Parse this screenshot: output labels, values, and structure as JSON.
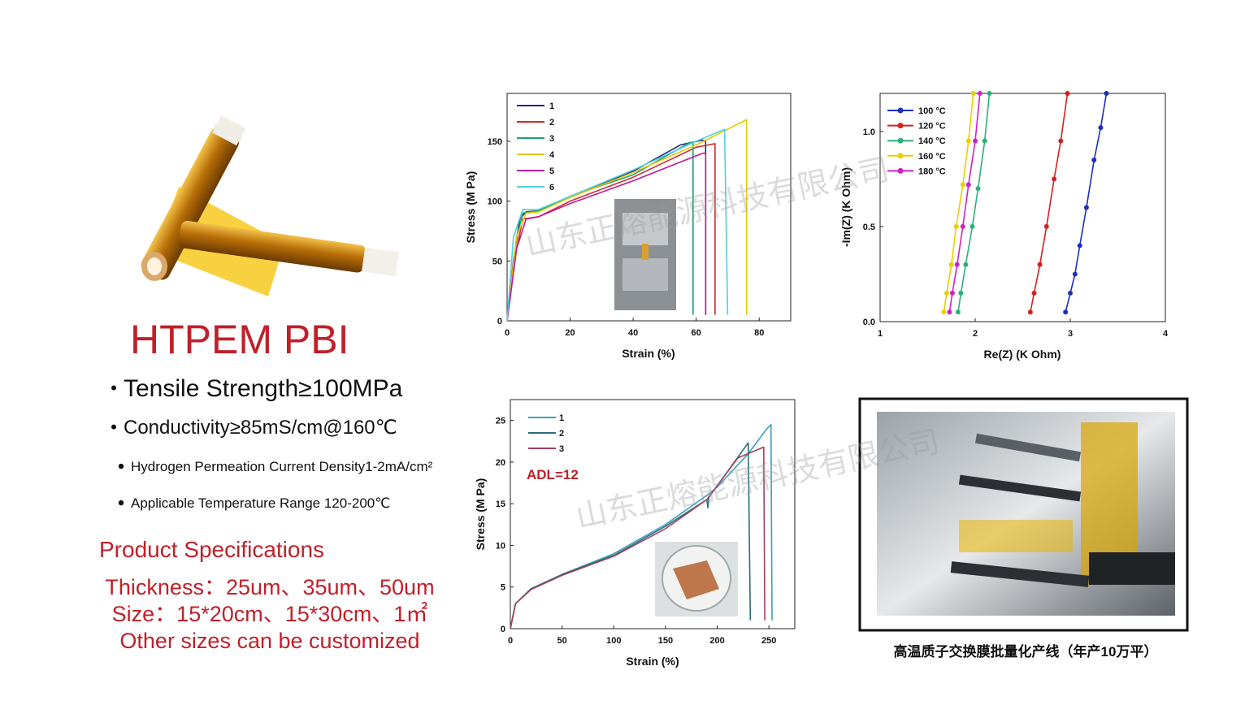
{
  "product": {
    "title": "HTPEM PBI",
    "features": [
      "Tensile Strength≥100MPa",
      "Conductivity≥85mS/cm@160℃",
      "Hydrogen Permeation Current Density1-2mA/cm²",
      "Applicable Temperature Range 120-200℃"
    ],
    "spec_heading": "Product Specifications",
    "specs": [
      "Thickness：25um、35um、50um",
      "Size：15*20cm、15*30cm、1㎡",
      "Other sizes can be customized"
    ]
  },
  "watermark": "山东正熔能源科技有限公司",
  "caption": "高温质子交换膜批量化产线（年产10万平）",
  "chart_data": [
    {
      "type": "line",
      "x_label": "Strain (%)",
      "y_label": "Stress (M Pa)",
      "xlim": [
        0,
        90
      ],
      "xticks": [
        0,
        20,
        40,
        60,
        80
      ],
      "ylim": [
        0,
        190
      ],
      "yticks": [
        0,
        50,
        100,
        150
      ],
      "legend": "upper left",
      "series": [
        {
          "name": "1",
          "color": "#1f2a7a",
          "x": [
            0,
            2,
            4,
            6,
            10,
            20,
            40,
            55,
            62,
            63,
            63
          ],
          "values": [
            0,
            50,
            85,
            91,
            92,
            104,
            125,
            147,
            151,
            150,
            5
          ]
        },
        {
          "name": "2",
          "color": "#d02a2a",
          "x": [
            0,
            3,
            5,
            10,
            20,
            40,
            60,
            66,
            66
          ],
          "values": [
            0,
            60,
            85,
            87,
            100,
            120,
            145,
            148,
            5
          ]
        },
        {
          "name": "3",
          "color": "#1a9e77",
          "x": [
            0,
            3,
            5,
            10,
            20,
            40,
            58,
            59,
            59
          ],
          "values": [
            0,
            70,
            90,
            92,
            104,
            122,
            149,
            149,
            5
          ]
        },
        {
          "name": "4",
          "color": "#e8c800",
          "x": [
            0,
            3,
            6,
            10,
            20,
            40,
            60,
            76,
            76
          ],
          "values": [
            0,
            70,
            90,
            91,
            103,
            124,
            147,
            168,
            5
          ]
        },
        {
          "name": "5",
          "color": "#c0189a",
          "x": [
            0,
            3,
            6,
            10,
            20,
            40,
            62,
            63,
            63
          ],
          "values": [
            0,
            60,
            85,
            87,
            98,
            117,
            140,
            140,
            5
          ]
        },
        {
          "name": "6",
          "color": "#4fd0e0",
          "x": [
            0,
            2,
            5,
            10,
            20,
            40,
            60,
            69,
            70
          ],
          "values": [
            0,
            70,
            93,
            93,
            104,
            126,
            150,
            160,
            5
          ]
        }
      ]
    },
    {
      "type": "line",
      "markers": true,
      "x_label": "Re(Z) (K Ohm)",
      "y_label": "-Im(Z) (K Ohm)",
      "xlim": [
        1,
        4
      ],
      "xticks": [
        1,
        2,
        3,
        4
      ],
      "ylim": [
        0,
        1.2
      ],
      "yticks": [
        {
          "value": 0,
          "label": "0.0"
        },
        {
          "value": 0.5,
          "label": "0.5"
        },
        {
          "value": 1,
          "label": "1.0"
        }
      ],
      "legend": "upper left",
      "series": [
        {
          "name": "100 °C",
          "color": "#1b2fc0",
          "x": [
            2.95,
            3.0,
            3.05,
            3.1,
            3.17,
            3.25,
            3.32,
            3.38
          ],
          "values": [
            0.05,
            0.15,
            0.25,
            0.4,
            0.6,
            0.85,
            1.02,
            1.2
          ]
        },
        {
          "name": "120 °C",
          "color": "#d62020",
          "x": [
            2.58,
            2.62,
            2.68,
            2.75,
            2.83,
            2.9,
            2.97
          ],
          "values": [
            0.05,
            0.15,
            0.3,
            0.5,
            0.75,
            0.95,
            1.2
          ]
        },
        {
          "name": "140 °C",
          "color": "#2bb07a",
          "x": [
            1.82,
            1.85,
            1.9,
            1.97,
            2.03,
            2.1,
            2.15
          ],
          "values": [
            0.05,
            0.15,
            0.3,
            0.5,
            0.7,
            0.95,
            1.2
          ]
        },
        {
          "name": "160 °C",
          "color": "#e8d000",
          "x": [
            1.67,
            1.7,
            1.75,
            1.8,
            1.87,
            1.93,
            1.98
          ],
          "values": [
            0.05,
            0.15,
            0.3,
            0.5,
            0.72,
            0.95,
            1.2
          ]
        },
        {
          "name": "180 °C",
          "color": "#d020c8",
          "x": [
            1.73,
            1.76,
            1.81,
            1.87,
            1.93,
            2.0,
            2.05
          ],
          "values": [
            0.05,
            0.15,
            0.3,
            0.5,
            0.72,
            0.95,
            1.2
          ]
        }
      ]
    },
    {
      "type": "line",
      "x_label": "Strain (%)",
      "y_label": "Stress (M Pa)",
      "annotation": "ADL=12",
      "xlim": [
        0,
        275
      ],
      "xticks": [
        0,
        50,
        100,
        150,
        200,
        250
      ],
      "ylim": [
        0,
        27.5
      ],
      "yticks": [
        0,
        5,
        10,
        15,
        20,
        25
      ],
      "legend": "upper left",
      "series": [
        {
          "name": "1",
          "color": "#3aa0c0",
          "x": [
            0,
            5,
            20,
            50,
            100,
            150,
            190,
            200,
            230,
            248,
            252,
            253
          ],
          "values": [
            0,
            3,
            4.8,
            6.5,
            9,
            12.5,
            16,
            17,
            21,
            24,
            24.5,
            1
          ]
        },
        {
          "name": "2",
          "color": "#2a6e7a",
          "x": [
            0,
            5,
            20,
            50,
            100,
            150,
            190,
            191,
            192,
            230,
            232
          ],
          "values": [
            0,
            3,
            4.8,
            6.5,
            8.8,
            12.3,
            15.5,
            14.5,
            15.8,
            22.3,
            1
          ]
        },
        {
          "name": "3",
          "color": "#a0405a",
          "x": [
            0,
            5,
            20,
            50,
            100,
            150,
            190,
            220,
            245,
            246
          ],
          "values": [
            0,
            3,
            4.7,
            6.4,
            8.7,
            12,
            15.5,
            20.5,
            21.8,
            1
          ]
        }
      ]
    }
  ]
}
